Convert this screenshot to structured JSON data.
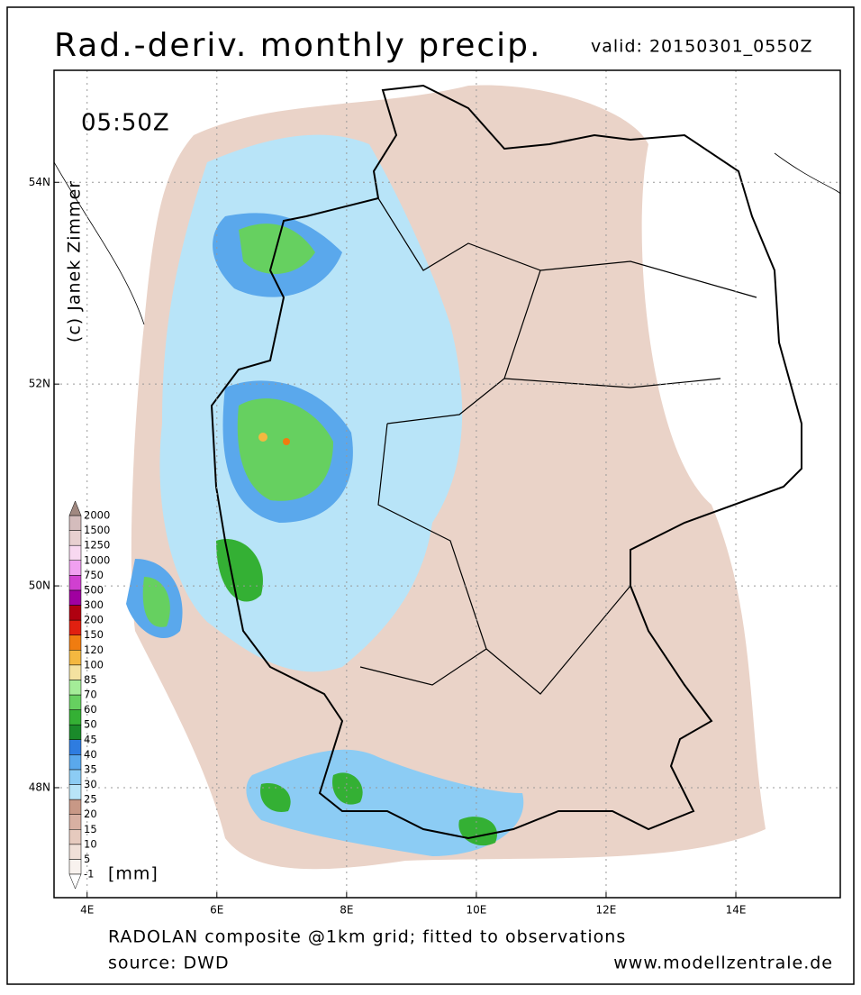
{
  "header": {
    "title": "Rad.-deriv. monthly precip.",
    "valid": "valid: 20150301_0550Z"
  },
  "map": {
    "time": "05:50Z",
    "credit": "(c) Janek Zimmer",
    "lonlim": [
      3.49,
      15.61
    ],
    "latlim": [
      46.91,
      55.11
    ],
    "lon_ticks": [
      {
        "value": 4,
        "label": "4E"
      },
      {
        "value": 6,
        "label": "6E"
      },
      {
        "value": 8,
        "label": "8E"
      },
      {
        "value": 10,
        "label": "10E"
      },
      {
        "value": 12,
        "label": "12E"
      },
      {
        "value": 14,
        "label": "14E"
      }
    ],
    "lat_ticks": [
      {
        "value": 48,
        "label": "48N"
      },
      {
        "value": 50,
        "label": "50N"
      },
      {
        "value": 52,
        "label": "52N"
      },
      {
        "value": 54,
        "label": "54N"
      }
    ]
  },
  "colorbar": {
    "unit": "[mm]",
    "levels": [
      -1,
      5,
      10,
      15,
      20,
      25,
      30,
      35,
      40,
      45,
      50,
      60,
      70,
      85,
      100,
      120,
      150,
      200,
      300,
      500,
      750,
      1000,
      1250,
      1500,
      2000
    ],
    "colors": [
      "#f8f2ee",
      "#f0e0d8",
      "#e6cabe",
      "#d8b0a2",
      "#c89886",
      "#b8e4f8",
      "#8cccf4",
      "#5aa8ec",
      "#2e7ce0",
      "#1a8a2a",
      "#34b034",
      "#66d060",
      "#a4ec98",
      "#f4e2a0",
      "#f4b840",
      "#f07c10",
      "#e02010",
      "#b00010",
      "#a000a0",
      "#d040d0",
      "#f0a0f0",
      "#f8d8f0",
      "#e8d0d0",
      "#d4bcbc"
    ],
    "under_color": "#ffffff",
    "over_color": "#a08880"
  },
  "footer": {
    "line1": "RADOLAN composite @1km grid; fitted to observations",
    "source": "source: DWD",
    "website": "www.modellzentrale.de"
  }
}
